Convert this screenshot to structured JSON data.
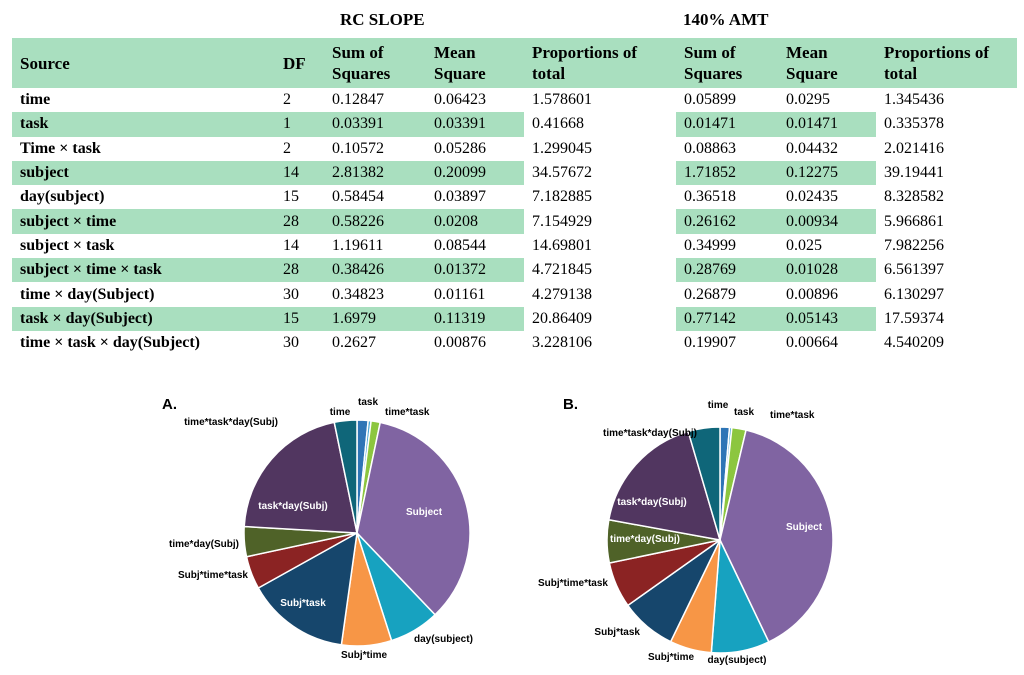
{
  "table": {
    "group1_title": "RC SLOPE",
    "group2_title": "140% AMT",
    "headers": [
      "Source",
      "DF",
      "Sum of Squares",
      "Mean Square",
      "Proportions of total",
      "Sum of Squares",
      "Mean Square",
      "Proportions of total"
    ],
    "rows": [
      {
        "source": "time",
        "df": "2",
        "ss1": "0.12847",
        "ms1": "0.06423",
        "p1": "1.578601",
        "ss2": "0.05899",
        "ms2": "0.0295",
        "p2": "1.345436"
      },
      {
        "source": "task",
        "df": "1",
        "ss1": "0.03391",
        "ms1": "0.03391",
        "p1": "0.41668",
        "ss2": "0.01471",
        "ms2": "0.01471",
        "p2": "0.335378"
      },
      {
        "source": "Time × task",
        "df": "2",
        "ss1": "0.10572",
        "ms1": "0.05286",
        "p1": "1.299045",
        "ss2": "0.08863",
        "ms2": "0.04432",
        "p2": "2.021416"
      },
      {
        "source": "subject",
        "df": "14",
        "ss1": "2.81382",
        "ms1": "0.20099",
        "p1": "34.57672",
        "ss2": "1.71852",
        "ms2": "0.12275",
        "p2": "39.19441"
      },
      {
        "source": "day(subject)",
        "df": "15",
        "ss1": "0.58454",
        "ms1": "0.03897",
        "p1": "7.182885",
        "ss2": "0.36518",
        "ms2": "0.02435",
        "p2": "8.328582"
      },
      {
        "source": "subject × time",
        "df": "28",
        "ss1": "0.58226",
        "ms1": "0.0208",
        "p1": "7.154929",
        "ss2": "0.26162",
        "ms2": "0.00934",
        "p2": "5.966861"
      },
      {
        "source": "subject × task",
        "df": "14",
        "ss1": "1.19611",
        "ms1": "0.08544",
        "p1": "14.69801",
        "ss2": "0.34999",
        "ms2": "0.025",
        "p2": "7.982256"
      },
      {
        "source": "subject × time × task",
        "df": "28",
        "ss1": "0.38426",
        "ms1": "0.01372",
        "p1": "4.721845",
        "ss2": "0.28769",
        "ms2": "0.01028",
        "p2": "6.561397"
      },
      {
        "source": "time × day(Subject)",
        "df": "30",
        "ss1": "0.34823",
        "ms1": "0.01161",
        "p1": "4.279138",
        "ss2": "0.26879",
        "ms2": "0.00896",
        "p2": "6.130297"
      },
      {
        "source": "task × day(Subject)",
        "df": "15",
        "ss1": "1.6979",
        "ms1": "0.11319",
        "p1": "20.86409",
        "ss2": "0.77142",
        "ms2": "0.05143",
        "p2": "17.59374"
      },
      {
        "source": "time × task × day(Subject)",
        "df": "30",
        "ss1": "0.2627",
        "ms1": "0.00876",
        "p1": "3.228106",
        "ss2": "0.19907",
        "ms2": "0.00664",
        "p2": "4.540209"
      }
    ]
  },
  "chart_data": [
    {
      "type": "pie",
      "panel": "A.",
      "slices": [
        {
          "label": "time",
          "value": 1.578601,
          "color": "#2e75b6"
        },
        {
          "label": "task",
          "value": 0.41668,
          "color": "#4aa7d6"
        },
        {
          "label": "time*task",
          "value": 1.299045,
          "color": "#8cc63f"
        },
        {
          "label": "Subject",
          "value": 34.57672,
          "color": "#8064a2"
        },
        {
          "label": "day(subject)",
          "value": 7.182885,
          "color": "#17a2c0"
        },
        {
          "label": "Subj*time",
          "value": 7.154929,
          "color": "#f79646"
        },
        {
          "label": "Subj*task",
          "value": 14.69801,
          "color": "#16466c"
        },
        {
          "label": "Subj*time*task",
          "value": 4.721845,
          "color": "#8b2323"
        },
        {
          "label": "time*day(Subj)",
          "value": 4.279138,
          "color": "#4f6228"
        },
        {
          "label": "task*day(Subj)",
          "value": 20.86409,
          "color": "#513660"
        },
        {
          "label": "time*task*day(Subj)",
          "value": 3.228106,
          "color": "#0f6679"
        }
      ]
    },
    {
      "type": "pie",
      "panel": "B.",
      "slices": [
        {
          "label": "time",
          "value": 1.345436,
          "color": "#2e75b6"
        },
        {
          "label": "task",
          "value": 0.335378,
          "color": "#4aa7d6"
        },
        {
          "label": "time*task",
          "value": 2.021416,
          "color": "#8cc63f"
        },
        {
          "label": "Subject",
          "value": 39.19441,
          "color": "#8064a2"
        },
        {
          "label": "day(subject)",
          "value": 8.328582,
          "color": "#17a2c0"
        },
        {
          "label": "Subj*time",
          "value": 5.966861,
          "color": "#f79646"
        },
        {
          "label": "Subj*task",
          "value": 7.982256,
          "color": "#16466c"
        },
        {
          "label": "Subj*time*task",
          "value": 6.561397,
          "color": "#8b2323"
        },
        {
          "label": "time*day(Subj)",
          "value": 6.130297,
          "color": "#4f6228"
        },
        {
          "label": "task*day(Subj)",
          "value": 17.59374,
          "color": "#513660"
        },
        {
          "label": "time*task*day(Subj)",
          "value": 4.540209,
          "color": "#0f6679"
        }
      ]
    }
  ]
}
